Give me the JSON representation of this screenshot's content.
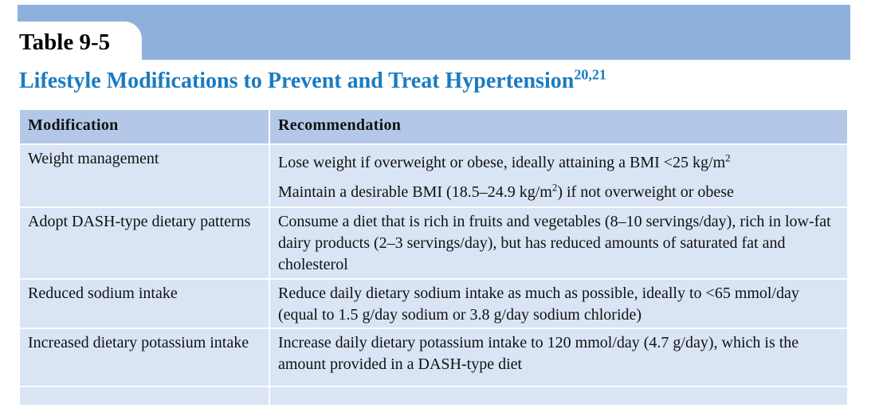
{
  "table_number": "Table 9-5",
  "title": "Lifestyle Modifications to Prevent and Treat Hypertension",
  "title_refs": "20,21",
  "colors": {
    "band": "#8db1dc",
    "header": "#b3c8e8",
    "row": "#d9e4f4",
    "title": "#1b7bc1"
  },
  "columns": [
    "Modification",
    "Recommendation"
  ],
  "rows": [
    {
      "modification": "Weight management",
      "rec1_pre": "Lose weight if overweight or obese, ideally attaining a BMI <25 kg/m",
      "rec1_sup": "2",
      "rec2_pre": "Maintain a desirable BMI (18.5–24.9 kg/m",
      "rec2_sup": "2",
      "rec2_post": ") if not overweight or obese"
    },
    {
      "modification": "Adopt DASH-type dietary patterns",
      "recommendation": "Consume a diet that is rich in fruits and vegetables (8–10 servings/day), rich in low-fat dairy products (2–3 servings/day), but has reduced amounts of saturated fat and cholesterol"
    },
    {
      "modification": "Reduced sodium intake",
      "recommendation": "Reduce daily dietary sodium intake as much as possible, ideally to <65 mmol/day (equal to 1.5 g/day sodium or 3.8 g/day sodium chloride)"
    },
    {
      "modification": "Increased dietary potassium intake",
      "recommendation": "Increase daily dietary potassium intake to 120 mmol/day (4.7 g/day), which is the amount provided in a DASH-type diet"
    }
  ]
}
